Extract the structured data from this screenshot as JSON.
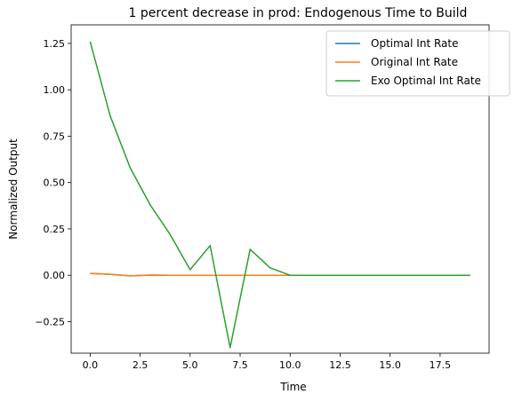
{
  "chart_data": {
    "type": "line",
    "title": "1 percent decrease in prod: Endogenous Time to Build",
    "xlabel": "Time",
    "ylabel": "Normalized Output",
    "xlim": [
      -0.95,
      19.95
    ],
    "ylim": [
      -0.42,
      1.35
    ],
    "x_ticks": [
      0.0,
      2.5,
      5.0,
      7.5,
      10.0,
      12.5,
      15.0,
      17.5
    ],
    "x_tick_labels": [
      "0.0",
      "2.5",
      "5.0",
      "7.5",
      "10.0",
      "12.5",
      "15.0",
      "17.5"
    ],
    "y_ticks": [
      -0.25,
      0.0,
      0.25,
      0.5,
      0.75,
      1.0,
      1.25
    ],
    "y_tick_labels": [
      "−0.25",
      "0.00",
      "0.25",
      "0.50",
      "0.75",
      "1.00",
      "1.25"
    ],
    "grid": false,
    "legend_position": "top-right",
    "x": [
      0,
      1,
      2,
      3,
      4,
      5,
      6,
      7,
      8,
      9,
      10,
      11,
      12,
      13,
      14,
      15,
      16,
      17,
      18,
      19
    ],
    "series": [
      {
        "name": "Optimal Int Rate",
        "color": "#1f77b4",
        "values": [
          0.01,
          0.005,
          -0.003,
          0.001,
          0.0,
          0.0,
          0.0,
          0.0,
          0.0,
          0.0,
          0.0,
          0.0,
          0.0,
          0.0,
          0.0,
          0.0,
          0.0,
          0.0,
          0.0,
          0.0
        ]
      },
      {
        "name": "Original Int Rate",
        "color": "#ff7f0e",
        "values": [
          0.01,
          0.005,
          -0.003,
          0.001,
          0.0,
          0.0,
          0.0,
          0.0,
          0.0,
          0.0,
          0.0,
          0.0,
          0.0,
          0.0,
          0.0,
          0.0,
          0.0,
          0.0,
          0.0,
          0.0
        ]
      },
      {
        "name": "Exo Optimal Int Rate",
        "color": "#2ca02c",
        "values": [
          1.26,
          0.86,
          0.58,
          0.38,
          0.22,
          0.03,
          0.16,
          -0.39,
          0.14,
          0.04,
          0.0,
          0.0,
          0.0,
          0.0,
          0.0,
          0.0,
          0.0,
          0.0,
          0.0,
          0.0
        ]
      }
    ]
  }
}
